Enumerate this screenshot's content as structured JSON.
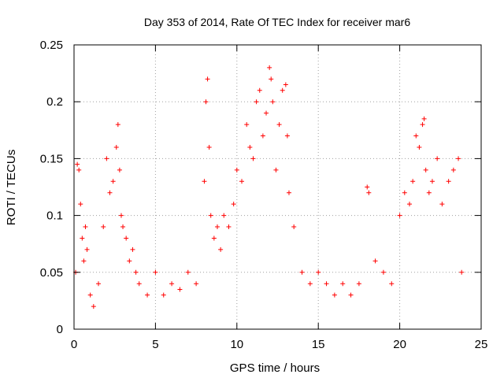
{
  "chart_data": {
    "type": "scatter",
    "title": "Day 353 of 2014, Rate Of TEC Index for receiver mar6",
    "xlabel": "GPS time / hours",
    "ylabel": "ROTI / TECUs",
    "xlim": [
      0,
      25
    ],
    "ylim": [
      0,
      0.25
    ],
    "xticks": [
      0,
      5,
      10,
      15,
      20,
      25
    ],
    "xtick_labels": [
      "0",
      "5",
      "10",
      "15",
      "20",
      "25"
    ],
    "yticks": [
      0,
      0.05,
      0.1,
      0.15,
      0.2,
      0.25
    ],
    "ytick_labels": [
      "0",
      "0.05",
      "0.1",
      "0.15",
      "0.2",
      "0.25"
    ],
    "grid": true,
    "marker": "+",
    "color": "#ff0000",
    "series": [
      {
        "name": "ROTI",
        "x": [
          0.1,
          0.2,
          0.3,
          0.4,
          0.5,
          0.6,
          0.7,
          0.8,
          1.0,
          1.2,
          1.5,
          1.8,
          2.0,
          2.2,
          2.4,
          2.6,
          2.7,
          2.8,
          2.9,
          3.0,
          3.2,
          3.4,
          3.6,
          3.8,
          4.0,
          4.5,
          5.0,
          5.5,
          6.0,
          6.5,
          7.0,
          7.5,
          8.0,
          8.1,
          8.2,
          8.3,
          8.4,
          8.6,
          8.8,
          9.0,
          9.2,
          9.5,
          9.8,
          10.0,
          10.3,
          10.6,
          10.8,
          11.0,
          11.2,
          11.4,
          11.6,
          11.8,
          12.0,
          12.1,
          12.2,
          12.4,
          12.6,
          12.8,
          13.0,
          13.1,
          13.2,
          13.5,
          14.0,
          14.5,
          15.0,
          15.5,
          16.0,
          16.5,
          17.0,
          17.5,
          18.0,
          18.1,
          18.5,
          19.0,
          19.5,
          20.0,
          20.3,
          20.6,
          20.8,
          21.0,
          21.2,
          21.4,
          21.5,
          21.6,
          21.8,
          22.0,
          22.3,
          22.6,
          23.0,
          23.3,
          23.6,
          23.8
        ],
        "y": [
          0.05,
          0.145,
          0.14,
          0.11,
          0.08,
          0.06,
          0.09,
          0.07,
          0.03,
          0.02,
          0.04,
          0.09,
          0.15,
          0.12,
          0.13,
          0.16,
          0.18,
          0.14,
          0.1,
          0.09,
          0.08,
          0.06,
          0.07,
          0.05,
          0.04,
          0.03,
          0.05,
          0.03,
          0.04,
          0.035,
          0.05,
          0.04,
          0.13,
          0.2,
          0.22,
          0.16,
          0.1,
          0.08,
          0.09,
          0.07,
          0.1,
          0.09,
          0.11,
          0.14,
          0.13,
          0.18,
          0.16,
          0.15,
          0.2,
          0.21,
          0.17,
          0.19,
          0.23,
          0.22,
          0.2,
          0.14,
          0.18,
          0.21,
          0.215,
          0.17,
          0.12,
          0.09,
          0.05,
          0.04,
          0.05,
          0.04,
          0.03,
          0.04,
          0.03,
          0.04,
          0.125,
          0.12,
          0.06,
          0.05,
          0.04,
          0.1,
          0.12,
          0.11,
          0.13,
          0.17,
          0.16,
          0.18,
          0.185,
          0.14,
          0.12,
          0.13,
          0.15,
          0.11,
          0.13,
          0.14,
          0.15,
          0.05
        ]
      }
    ]
  }
}
